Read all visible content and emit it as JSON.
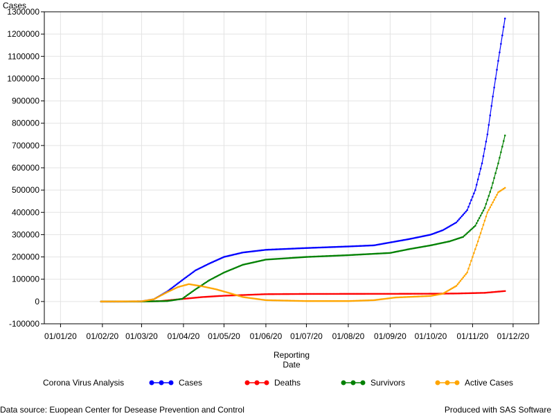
{
  "chart_data": {
    "type": "line",
    "ylabel": "Cases",
    "xlabel_lines": [
      "Reporting",
      "Date"
    ],
    "x_ticks": [
      "01/01/20",
      "01/02/20",
      "01/03/20",
      "01/04/20",
      "01/05/20",
      "01/06/20",
      "01/07/20",
      "01/08/20",
      "01/09/20",
      "01/10/20",
      "01/11/20",
      "01/12/20"
    ],
    "x_range": [
      "2019-12-20",
      "2020-12-20"
    ],
    "ylim": [
      -100000,
      1300000
    ],
    "y_ticks": [
      -100000,
      0,
      100000,
      200000,
      300000,
      400000,
      500000,
      600000,
      700000,
      800000,
      900000,
      1000000,
      1100000,
      1200000,
      1300000
    ],
    "grid": true,
    "legend_title": "Corona Virus Analysis",
    "legend_position": "bottom",
    "series": [
      {
        "name": "Cases",
        "color": "#0000ff",
        "points": [
          [
            "2020-01-31",
            0
          ],
          [
            "2020-02-15",
            0
          ],
          [
            "2020-03-01",
            1000
          ],
          [
            "2020-03-10",
            10000
          ],
          [
            "2020-03-20",
            45000
          ],
          [
            "2020-04-01",
            100000
          ],
          [
            "2020-04-10",
            140000
          ],
          [
            "2020-04-20",
            170000
          ],
          [
            "2020-05-01",
            200000
          ],
          [
            "2020-05-15",
            220000
          ],
          [
            "2020-06-01",
            232000
          ],
          [
            "2020-07-01",
            240000
          ],
          [
            "2020-08-01",
            247000
          ],
          [
            "2020-08-20",
            252000
          ],
          [
            "2020-09-01",
            265000
          ],
          [
            "2020-09-15",
            280000
          ],
          [
            "2020-10-01",
            300000
          ],
          [
            "2020-10-10",
            320000
          ],
          [
            "2020-10-20",
            355000
          ],
          [
            "2020-10-28",
            410000
          ],
          [
            "2020-11-03",
            500000
          ],
          [
            "2020-11-08",
            620000
          ],
          [
            "2020-11-12",
            750000
          ],
          [
            "2020-11-16",
            920000
          ],
          [
            "2020-11-20",
            1080000
          ],
          [
            "2020-11-25",
            1270000
          ]
        ]
      },
      {
        "name": "Deaths",
        "color": "#ff0000",
        "points": [
          [
            "2020-01-31",
            0
          ],
          [
            "2020-03-01",
            0
          ],
          [
            "2020-03-15",
            2000
          ],
          [
            "2020-04-01",
            12000
          ],
          [
            "2020-04-15",
            20000
          ],
          [
            "2020-05-01",
            26000
          ],
          [
            "2020-05-15",
            29000
          ],
          [
            "2020-06-01",
            33000
          ],
          [
            "2020-07-01",
            34000
          ],
          [
            "2020-09-01",
            34500
          ],
          [
            "2020-10-01",
            35000
          ],
          [
            "2020-10-20",
            36000
          ],
          [
            "2020-11-10",
            39000
          ],
          [
            "2020-11-25",
            47000
          ]
        ]
      },
      {
        "name": "Survivors",
        "color": "#008000",
        "points": [
          [
            "2020-01-31",
            0
          ],
          [
            "2020-03-01",
            0
          ],
          [
            "2020-03-20",
            2000
          ],
          [
            "2020-03-31",
            12000
          ],
          [
            "2020-04-10",
            55000
          ],
          [
            "2020-04-20",
            95000
          ],
          [
            "2020-05-01",
            130000
          ],
          [
            "2020-05-15",
            165000
          ],
          [
            "2020-06-01",
            188000
          ],
          [
            "2020-07-01",
            200000
          ],
          [
            "2020-08-01",
            208000
          ],
          [
            "2020-09-01",
            218000
          ],
          [
            "2020-09-15",
            235000
          ],
          [
            "2020-10-01",
            252000
          ],
          [
            "2020-10-15",
            270000
          ],
          [
            "2020-10-25",
            290000
          ],
          [
            "2020-11-03",
            340000
          ],
          [
            "2020-11-10",
            420000
          ],
          [
            "2020-11-15",
            510000
          ],
          [
            "2020-11-20",
            620000
          ],
          [
            "2020-11-25",
            745000
          ]
        ]
      },
      {
        "name": "Active Cases",
        "color": "#ffa500",
        "points": [
          [
            "2020-01-31",
            0
          ],
          [
            "2020-03-01",
            1000
          ],
          [
            "2020-03-10",
            10000
          ],
          [
            "2020-03-20",
            42000
          ],
          [
            "2020-03-28",
            65000
          ],
          [
            "2020-04-05",
            78000
          ],
          [
            "2020-04-15",
            68000
          ],
          [
            "2020-04-25",
            55000
          ],
          [
            "2020-05-05",
            38000
          ],
          [
            "2020-05-15",
            20000
          ],
          [
            "2020-06-01",
            6000
          ],
          [
            "2020-07-01",
            2000
          ],
          [
            "2020-08-01",
            2000
          ],
          [
            "2020-08-20",
            6000
          ],
          [
            "2020-09-05",
            18000
          ],
          [
            "2020-10-01",
            25000
          ],
          [
            "2020-10-10",
            35000
          ],
          [
            "2020-10-20",
            70000
          ],
          [
            "2020-10-28",
            130000
          ],
          [
            "2020-11-05",
            270000
          ],
          [
            "2020-11-12",
            400000
          ],
          [
            "2020-11-20",
            490000
          ],
          [
            "2020-11-25",
            510000
          ]
        ]
      }
    ]
  },
  "footer": {
    "source": "Data source: Euopean Center for Desease Prevention and Control",
    "produced": "Produced with SAS Software"
  }
}
